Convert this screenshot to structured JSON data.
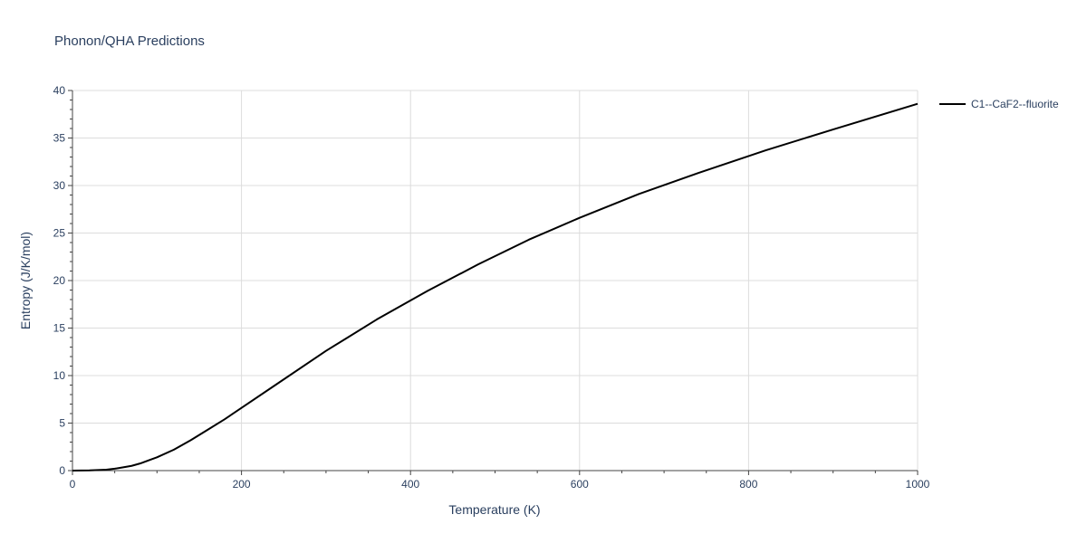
{
  "chart_data": {
    "type": "line",
    "title": "Phonon/QHA Predictions",
    "xlabel": "Temperature (K)",
    "ylabel": "Entropy (J/K/mol)",
    "xlim": [
      0,
      1000
    ],
    "ylim": [
      0,
      40
    ],
    "x_ticks": [
      0,
      200,
      400,
      600,
      800,
      1000
    ],
    "y_ticks": [
      0,
      5,
      10,
      15,
      20,
      25,
      30,
      35,
      40
    ],
    "grid": true,
    "legend_position": "top-right",
    "series": [
      {
        "name": "C1--CaF2--fluorite",
        "color": "#000000",
        "x": [
          0,
          20,
          40,
          50,
          60,
          70,
          80,
          100,
          120,
          140,
          160,
          180,
          200,
          240,
          300,
          360,
          420,
          480,
          540,
          600,
          670,
          740,
          820,
          900,
          1000
        ],
        "y": [
          0,
          0.02,
          0.1,
          0.2,
          0.35,
          0.5,
          0.75,
          1.4,
          2.2,
          3.2,
          4.3,
          5.4,
          6.6,
          9.0,
          12.6,
          15.9,
          18.9,
          21.7,
          24.3,
          26.6,
          29.1,
          31.3,
          33.7,
          35.9,
          38.6
        ]
      }
    ]
  }
}
